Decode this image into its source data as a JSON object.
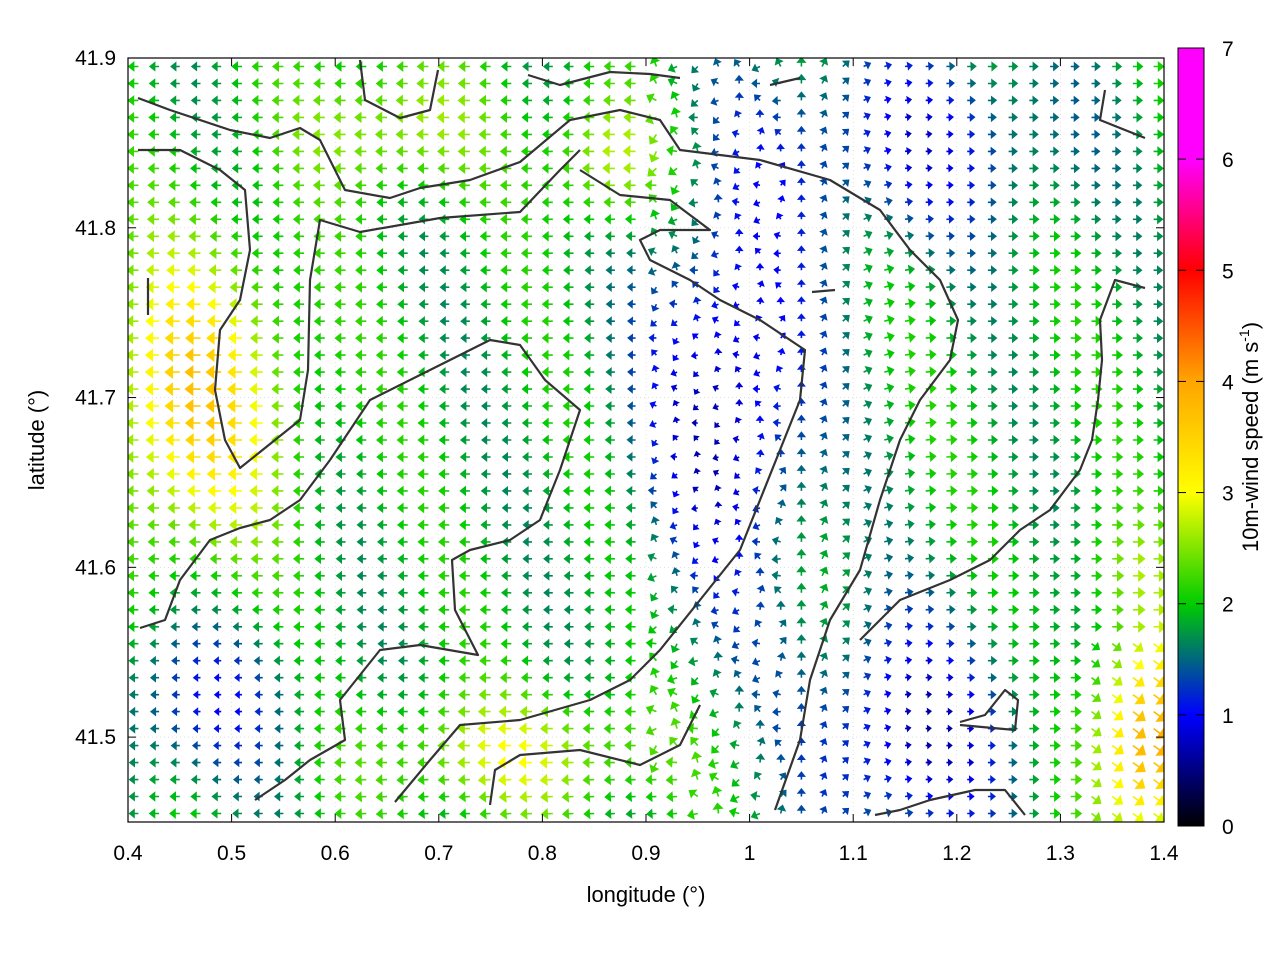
{
  "chart_data": {
    "type": "vector-field",
    "title": "",
    "xlabel": "longitude (°)",
    "ylabel": "latitude (°)",
    "xlim": [
      0.4,
      1.4
    ],
    "ylim": [
      41.45,
      41.9
    ],
    "xticks": [
      "0.4",
      "0.5",
      "0.6",
      "0.7",
      "0.8",
      "0.9",
      "1",
      "1.1",
      "1.2",
      "1.3",
      "1.4"
    ],
    "xtick_values": [
      0.4,
      0.5,
      0.6,
      0.7,
      0.8,
      0.9,
      1.0,
      1.1,
      1.2,
      1.3,
      1.4
    ],
    "yticks": [
      "41.5",
      "41.6",
      "41.7",
      "41.8",
      "41.9"
    ],
    "ytick_values": [
      41.5,
      41.6,
      41.7,
      41.8,
      41.9
    ],
    "grid": true,
    "colorbar": {
      "label": "10m-wind speed (m s",
      "label_superscript": "-1",
      "label_suffix": ")",
      "range": [
        0,
        7
      ],
      "ticks": [
        "0",
        "1",
        "2",
        "3",
        "4",
        "5",
        "6",
        "7"
      ],
      "tick_values": [
        0,
        1,
        2,
        3,
        4,
        5,
        6,
        7
      ],
      "palette": [
        "#000000",
        "#0000ff",
        "#00cc00",
        "#ffff00",
        "#ffa500",
        "#ff0000",
        "#ff00ff"
      ]
    },
    "wind_field": {
      "description_of_regions": [
        {
          "lon": [
            0.4,
            0.55
          ],
          "lat": [
            41.6,
            41.8
          ],
          "speed": 3.5,
          "direction": "west"
        },
        {
          "lon": [
            0.55,
            0.85
          ],
          "lat": [
            41.55,
            41.8
          ],
          "speed": 2.2,
          "direction": "west"
        },
        {
          "lon": [
            0.85,
            1.05
          ],
          "lat": [
            41.55,
            41.8
          ],
          "speed": 1.2,
          "direction": "variable"
        },
        {
          "lon": [
            1.05,
            1.4
          ],
          "lat": [
            41.55,
            41.8
          ],
          "speed": 1.3,
          "direction": "east"
        },
        {
          "lon": [
            1.3,
            1.4
          ],
          "lat": [
            41.45,
            41.55
          ],
          "speed": 3.8,
          "direction": "northeast"
        },
        {
          "lon": [
            0.65,
            0.95
          ],
          "lat": [
            41.45,
            41.52
          ],
          "speed": 2.8,
          "direction": "west"
        }
      ]
    }
  }
}
